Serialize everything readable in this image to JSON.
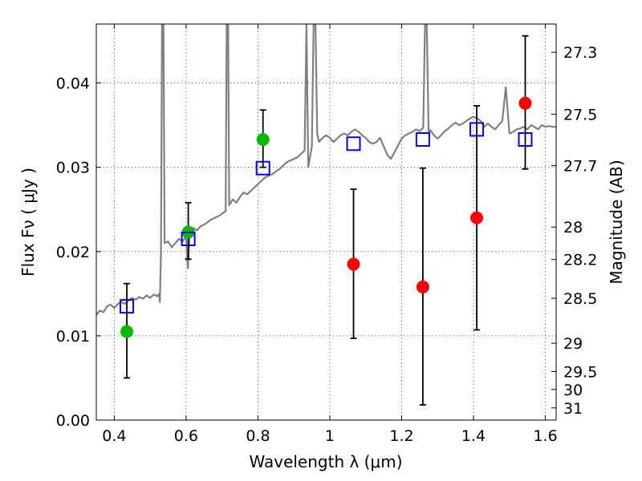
{
  "chart_data": {
    "type": "scatter",
    "xlabel": "Wavelength  λ (μm)",
    "ylabel": "Flux  Fν  ( μJy )",
    "y2label": "Magnitude (AB)",
    "xlim": [
      0.35,
      1.63
    ],
    "ylim": [
      0.0,
      0.047
    ],
    "grid": true,
    "x_ticks": [
      0.4,
      0.6,
      0.8,
      1.0,
      1.2,
      1.4,
      1.6
    ],
    "x_tick_labels": [
      "0.4",
      "0.6",
      "0.8",
      "1",
      "1.2",
      "1.4",
      "1.6"
    ],
    "y_ticks": [
      0.0,
      0.01,
      0.02,
      0.03,
      0.04
    ],
    "y_tick_labels": [
      "0.00",
      "0.01",
      "0.02",
      "0.03",
      "0.04"
    ],
    "mag_ticks": [
      27.3,
      27.5,
      27.7,
      28,
      28.2,
      28.5,
      29,
      29.5,
      30,
      31
    ],
    "mag_tick_labels": [
      "27.3",
      "27.5",
      "27.7",
      "28",
      "28.2",
      "28.5",
      "29",
      "29.5",
      "30",
      "31"
    ],
    "colors": {
      "model_spectrum": "#808080",
      "detections": "#00bb00",
      "upper_values": "#ff0000",
      "model_photometry": "#0000ff",
      "errorbars": "#000000"
    },
    "series": [
      {
        "marker": "line",
        "color": "#808080",
        "points": [
          [
            0.35,
            0.0125
          ],
          [
            0.36,
            0.013
          ],
          [
            0.37,
            0.0128
          ],
          [
            0.38,
            0.0135
          ],
          [
            0.39,
            0.0137
          ],
          [
            0.4,
            0.0133
          ],
          [
            0.41,
            0.0138
          ],
          [
            0.42,
            0.014
          ],
          [
            0.43,
            0.0138
          ],
          [
            0.44,
            0.0142
          ],
          [
            0.45,
            0.0145
          ],
          [
            0.46,
            0.0143
          ],
          [
            0.47,
            0.0146
          ],
          [
            0.48,
            0.0144
          ],
          [
            0.49,
            0.0148
          ],
          [
            0.5,
            0.0145
          ],
          [
            0.51,
            0.0149
          ],
          [
            0.52,
            0.0147
          ],
          [
            0.525,
            0.015
          ],
          [
            0.527,
            0.014
          ],
          [
            0.53,
            0.02
          ],
          [
            0.533,
            0.047
          ],
          [
            0.537,
            0.047
          ],
          [
            0.54,
            0.021
          ],
          [
            0.55,
            0.0212
          ],
          [
            0.56,
            0.0205
          ],
          [
            0.57,
            0.021
          ],
          [
            0.58,
            0.0215
          ],
          [
            0.59,
            0.0212
          ],
          [
            0.6,
            0.0218
          ],
          [
            0.605,
            0.018
          ],
          [
            0.61,
            0.0222
          ],
          [
            0.62,
            0.0228
          ],
          [
            0.63,
            0.0225
          ],
          [
            0.64,
            0.023
          ],
          [
            0.65,
            0.0232
          ],
          [
            0.66,
            0.0235
          ],
          [
            0.67,
            0.0238
          ],
          [
            0.68,
            0.024
          ],
          [
            0.69,
            0.0242
          ],
          [
            0.7,
            0.0245
          ],
          [
            0.71,
            0.0248
          ],
          [
            0.713,
            0.047
          ],
          [
            0.717,
            0.047
          ],
          [
            0.72,
            0.0255
          ],
          [
            0.73,
            0.0262
          ],
          [
            0.74,
            0.0258
          ],
          [
            0.75,
            0.0265
          ],
          [
            0.76,
            0.027
          ],
          [
            0.77,
            0.0268
          ],
          [
            0.78,
            0.0272
          ],
          [
            0.79,
            0.0276
          ],
          [
            0.8,
            0.028
          ],
          [
            0.81,
            0.0284
          ],
          [
            0.82,
            0.0288
          ],
          [
            0.83,
            0.029
          ],
          [
            0.84,
            0.0292
          ],
          [
            0.85,
            0.0295
          ],
          [
            0.86,
            0.0298
          ],
          [
            0.87,
            0.0302
          ],
          [
            0.88,
            0.0306
          ],
          [
            0.89,
            0.0308
          ],
          [
            0.9,
            0.031
          ],
          [
            0.91,
            0.0312
          ],
          [
            0.92,
            0.0316
          ],
          [
            0.93,
            0.032
          ],
          [
            0.935,
            0.047
          ],
          [
            0.94,
            0.03
          ],
          [
            0.95,
            0.0325
          ],
          [
            0.955,
            0.047
          ],
          [
            0.96,
            0.047
          ],
          [
            0.965,
            0.034
          ],
          [
            0.97,
            0.033
          ],
          [
            0.98,
            0.0335
          ],
          [
            0.99,
            0.0338
          ],
          [
            1.0,
            0.0335
          ],
          [
            1.01,
            0.033
          ],
          [
            1.02,
            0.0334
          ],
          [
            1.03,
            0.0338
          ],
          [
            1.04,
            0.034
          ],
          [
            1.05,
            0.0338
          ],
          [
            1.06,
            0.0342
          ],
          [
            1.07,
            0.0345
          ],
          [
            1.08,
            0.0342
          ],
          [
            1.09,
            0.0338
          ],
          [
            1.1,
            0.0335
          ],
          [
            1.11,
            0.033
          ],
          [
            1.12,
            0.0328
          ],
          [
            1.13,
            0.033
          ],
          [
            1.14,
            0.0335
          ],
          [
            1.15,
            0.0325
          ],
          [
            1.16,
            0.0315
          ],
          [
            1.17,
            0.031
          ],
          [
            1.18,
            0.0318
          ],
          [
            1.19,
            0.0326
          ],
          [
            1.2,
            0.0334
          ],
          [
            1.21,
            0.0338
          ],
          [
            1.22,
            0.034
          ],
          [
            1.23,
            0.0342
          ],
          [
            1.24,
            0.0345
          ],
          [
            1.25,
            0.0343
          ],
          [
            1.26,
            0.0347
          ],
          [
            1.265,
            0.047
          ],
          [
            1.27,
            0.047
          ],
          [
            1.275,
            0.034
          ],
          [
            1.28,
            0.0344
          ],
          [
            1.29,
            0.0338
          ],
          [
            1.3,
            0.0334
          ],
          [
            1.31,
            0.0338
          ],
          [
            1.32,
            0.0343
          ],
          [
            1.33,
            0.0346
          ],
          [
            1.34,
            0.035
          ],
          [
            1.35,
            0.0353
          ],
          [
            1.36,
            0.035
          ],
          [
            1.37,
            0.0352
          ],
          [
            1.38,
            0.0355
          ],
          [
            1.39,
            0.0358
          ],
          [
            1.4,
            0.036
          ],
          [
            1.41,
            0.0358
          ],
          [
            1.42,
            0.0355
          ],
          [
            1.43,
            0.0348
          ],
          [
            1.44,
            0.0352
          ],
          [
            1.45,
            0.0348
          ],
          [
            1.46,
            0.0345
          ],
          [
            1.47,
            0.035
          ],
          [
            1.48,
            0.0355
          ],
          [
            1.49,
            0.0395
          ],
          [
            1.5,
            0.034
          ],
          [
            1.51,
            0.0342
          ],
          [
            1.52,
            0.0345
          ],
          [
            1.53,
            0.0346
          ],
          [
            1.54,
            0.0348
          ],
          [
            1.55,
            0.0345
          ],
          [
            1.56,
            0.035
          ],
          [
            1.57,
            0.0348
          ],
          [
            1.58,
            0.0345
          ],
          [
            1.59,
            0.035
          ],
          [
            1.6,
            0.0348
          ],
          [
            1.61,
            0.0349
          ],
          [
            1.62,
            0.0348
          ],
          [
            1.63,
            0.0348
          ]
        ]
      },
      {
        "marker": "circle",
        "color": "#00bb00",
        "points": [
          {
            "x": 0.435,
            "y": 0.0105,
            "yerr_low": 0.005,
            "yerr_high": 0.0162
          },
          {
            "x": 0.606,
            "y": 0.0223,
            "yerr_low": 0.0191,
            "yerr_high": 0.0258
          },
          {
            "x": 0.814,
            "y": 0.0333,
            "yerr_low": 0.03,
            "yerr_high": 0.0368
          }
        ]
      },
      {
        "marker": "circle",
        "color": "#ff0000",
        "points": [
          {
            "x": 1.066,
            "y": 0.0185,
            "yerr_low": 0.0097,
            "yerr_high": 0.0274
          },
          {
            "x": 1.259,
            "y": 0.0158,
            "yerr_low": 0.0018,
            "yerr_high": 0.0299
          },
          {
            "x": 1.409,
            "y": 0.024,
            "yerr_low": 0.0107,
            "yerr_high": 0.0373
          },
          {
            "x": 1.544,
            "y": 0.0376,
            "yerr_low": 0.0298,
            "yerr_high": 0.0456
          }
        ]
      },
      {
        "marker": "square",
        "color": "#0000ff",
        "points": [
          {
            "x": 0.435,
            "y": 0.0135
          },
          {
            "x": 0.606,
            "y": 0.0215
          },
          {
            "x": 0.814,
            "y": 0.0299
          },
          {
            "x": 1.066,
            "y": 0.0328
          },
          {
            "x": 1.259,
            "y": 0.0333
          },
          {
            "x": 1.409,
            "y": 0.0345
          },
          {
            "x": 1.544,
            "y": 0.0333
          }
        ]
      }
    ]
  }
}
